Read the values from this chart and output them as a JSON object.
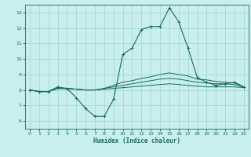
{
  "title": "",
  "xlabel": "Humidex (Indice chaleur)",
  "bg_color": "#c8eef0",
  "grid_color": "#a8d8d0",
  "line_color": "#1a6b5a",
  "xlim": [
    -0.5,
    23.5
  ],
  "ylim": [
    5.5,
    13.5
  ],
  "yticks": [
    6,
    7,
    8,
    9,
    10,
    11,
    12,
    13
  ],
  "xticks": [
    0,
    1,
    2,
    3,
    4,
    5,
    6,
    7,
    8,
    9,
    10,
    11,
    12,
    13,
    14,
    15,
    16,
    17,
    18,
    19,
    20,
    21,
    22,
    23
  ],
  "lines": [
    [
      8.0,
      7.9,
      7.9,
      8.2,
      8.1,
      7.5,
      6.8,
      6.3,
      6.3,
      7.4,
      10.3,
      10.7,
      11.9,
      12.1,
      12.1,
      13.3,
      12.4,
      10.7,
      8.8,
      8.5,
      8.3,
      8.4,
      8.5,
      8.2
    ],
    [
      8.0,
      7.9,
      7.9,
      8.1,
      8.1,
      8.05,
      8.0,
      8.0,
      8.05,
      8.1,
      8.15,
      8.2,
      8.25,
      8.3,
      8.35,
      8.4,
      8.35,
      8.3,
      8.25,
      8.2,
      8.2,
      8.2,
      8.2,
      8.15
    ],
    [
      8.0,
      7.9,
      7.9,
      8.1,
      8.1,
      8.05,
      8.0,
      8.0,
      8.1,
      8.2,
      8.3,
      8.4,
      8.5,
      8.6,
      8.7,
      8.75,
      8.7,
      8.6,
      8.5,
      8.45,
      8.4,
      8.4,
      8.35,
      8.2
    ],
    [
      8.0,
      7.9,
      7.9,
      8.1,
      8.1,
      8.05,
      8.0,
      8.0,
      8.1,
      8.3,
      8.5,
      8.6,
      8.75,
      8.85,
      9.0,
      9.1,
      9.0,
      8.9,
      8.7,
      8.65,
      8.55,
      8.5,
      8.45,
      8.2
    ]
  ]
}
